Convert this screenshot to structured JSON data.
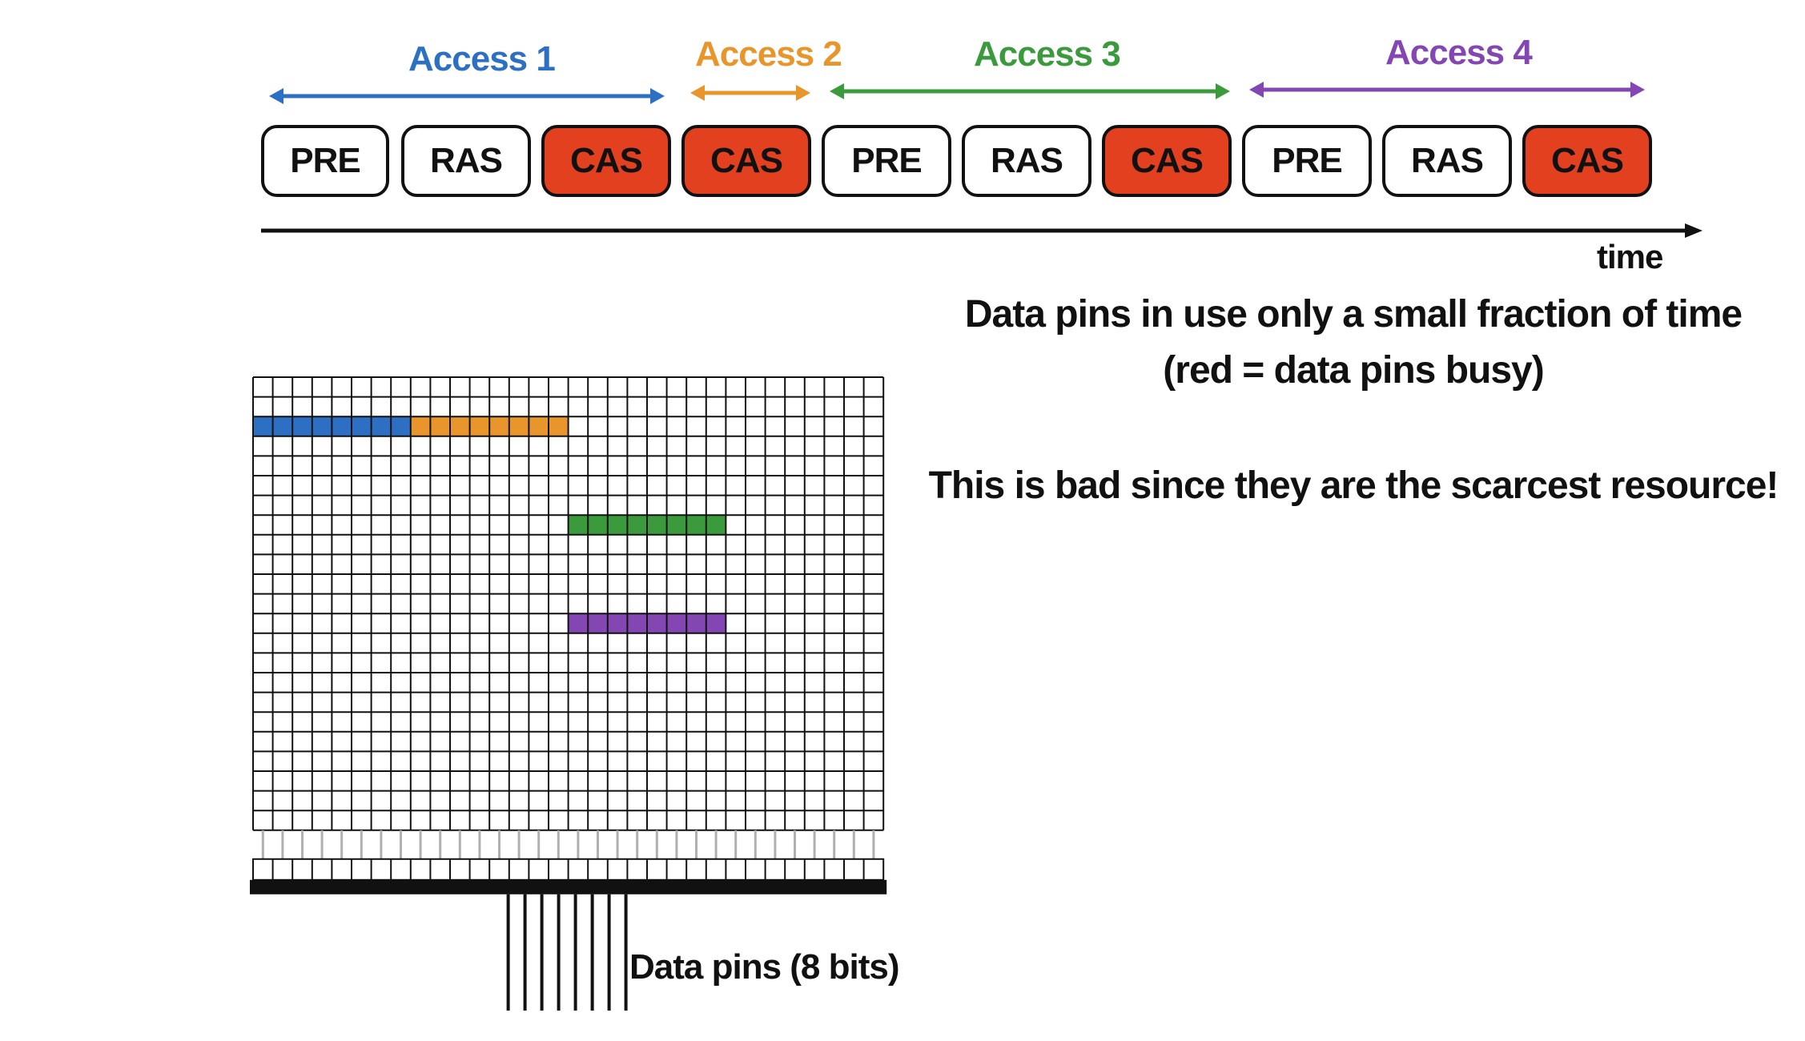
{
  "timeline": {
    "accesses": [
      {
        "label": "Access 1",
        "color": "#2d6fc3"
      },
      {
        "label": "Access 2",
        "color": "#e8952b"
      },
      {
        "label": "Access 3",
        "color": "#3a9a3c"
      },
      {
        "label": "Access 4",
        "color": "#8346b3"
      }
    ],
    "commands": [
      {
        "label": "PRE",
        "busy": false
      },
      {
        "label": "RAS",
        "busy": false
      },
      {
        "label": "CAS",
        "busy": true
      },
      {
        "label": "CAS",
        "busy": true
      },
      {
        "label": "PRE",
        "busy": false
      },
      {
        "label": "RAS",
        "busy": false
      },
      {
        "label": "CAS",
        "busy": true
      },
      {
        "label": "PRE",
        "busy": false
      },
      {
        "label": "RAS",
        "busy": false
      },
      {
        "label": "CAS",
        "busy": true
      }
    ],
    "time_label": "time",
    "busy_color": "#e2401f"
  },
  "notes": {
    "line1": "Data pins in use only a small fraction of time",
    "line2": "(red = data pins busy)",
    "line3": "This is bad since they are the scarcest resource!"
  },
  "dram": {
    "columns": 32,
    "rows": 23,
    "highlights": [
      {
        "row": 2,
        "start_col": 0,
        "end_col": 7,
        "access": 0
      },
      {
        "row": 2,
        "start_col": 8,
        "end_col": 15,
        "access": 1
      },
      {
        "row": 7,
        "start_col": 16,
        "end_col": 23,
        "access": 2
      },
      {
        "row": 12,
        "start_col": 16,
        "end_col": 23,
        "access": 3
      }
    ],
    "data_pin_count": 8,
    "data_pins_label": "Data pins (8 bits)"
  }
}
